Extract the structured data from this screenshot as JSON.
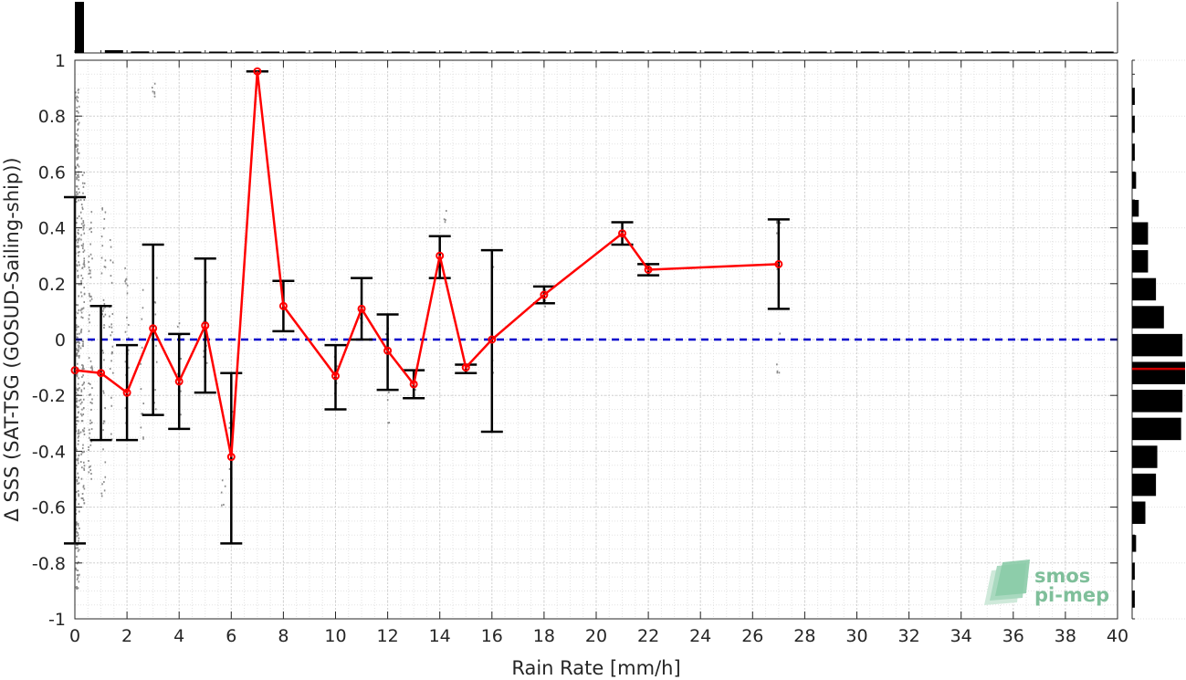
{
  "chart_data": {
    "type": "scatter",
    "title": "",
    "xlabel": "Rain Rate [mm/h]",
    "ylabel": "Δ SSS (SAT-TSG (GOSUD-Sailing-ship))",
    "xlim": [
      0,
      40
    ],
    "ylim": [
      -1,
      1
    ],
    "x_ticks": [
      0,
      2,
      4,
      6,
      8,
      10,
      12,
      14,
      16,
      18,
      20,
      22,
      24,
      26,
      28,
      30,
      32,
      34,
      36,
      38,
      40
    ],
    "y_ticks": [
      -1,
      -0.8,
      -0.6,
      -0.4,
      -0.2,
      0,
      0.2,
      0.4,
      0.6,
      0.8,
      1
    ],
    "y_tick_labels": [
      "-1",
      "-0.8",
      "-0.6",
      "-0.4",
      "-0.2",
      "0",
      "0.2",
      "0.4",
      "0.6",
      "0.8",
      "1"
    ],
    "grid": true,
    "reference_line": {
      "y": 0,
      "color": "#0000cc",
      "style": "dashed"
    },
    "series": [
      {
        "type": "line-with-errorbars",
        "color": "#ff0000",
        "errorbar_color": "#000000",
        "points": [
          {
            "x": 0,
            "y": -0.11,
            "low": -0.73,
            "high": 0.51
          },
          {
            "x": 1,
            "y": -0.12,
            "low": -0.36,
            "high": 0.12
          },
          {
            "x": 2,
            "y": -0.19,
            "low": -0.36,
            "high": -0.02
          },
          {
            "x": 3,
            "y": 0.04,
            "low": -0.27,
            "high": 0.34
          },
          {
            "x": 4,
            "y": -0.15,
            "low": -0.32,
            "high": 0.02
          },
          {
            "x": 5,
            "y": 0.05,
            "low": -0.19,
            "high": 0.29
          },
          {
            "x": 6,
            "y": -0.42,
            "low": -0.73,
            "high": -0.12
          },
          {
            "x": 7,
            "y": 0.96,
            "low": 0.96,
            "high": 0.96
          },
          {
            "x": 8,
            "y": 0.12,
            "low": 0.03,
            "high": 0.21
          },
          {
            "x": 10,
            "y": -0.13,
            "low": -0.25,
            "high": -0.02
          },
          {
            "x": 11,
            "y": 0.11,
            "low": 0.0,
            "high": 0.22
          },
          {
            "x": 12,
            "y": -0.04,
            "low": -0.18,
            "high": 0.09
          },
          {
            "x": 13,
            "y": -0.16,
            "low": -0.21,
            "high": -0.11
          },
          {
            "x": 14,
            "y": 0.3,
            "low": 0.22,
            "high": 0.37
          },
          {
            "x": 15,
            "y": -0.1,
            "low": -0.12,
            "high": -0.09
          },
          {
            "x": 16,
            "y": 0.0,
            "low": -0.33,
            "high": 0.32
          },
          {
            "x": 18,
            "y": 0.16,
            "low": 0.13,
            "high": 0.19
          },
          {
            "x": 21,
            "y": 0.38,
            "low": 0.34,
            "high": 0.42
          },
          {
            "x": 22,
            "y": 0.25,
            "low": 0.23,
            "high": 0.27
          },
          {
            "x": 27,
            "y": 0.27,
            "low": 0.11,
            "high": 0.43
          }
        ]
      }
    ],
    "scatter_points": {
      "color": "#8c8c8c",
      "description_note": "",
      "clusters": [
        {
          "x": 0.1,
          "y_min": -0.9,
          "y_max": 0.9,
          "count": 260
        },
        {
          "x": 0.3,
          "y_min": -0.6,
          "y_max": 0.6,
          "count": 120
        },
        {
          "x": 0.6,
          "y_min": -0.5,
          "y_max": 0.5,
          "count": 60
        },
        {
          "x": 1.1,
          "y_min": -0.6,
          "y_max": 0.5,
          "count": 40
        },
        {
          "x": 1.4,
          "y_min": -0.4,
          "y_max": 0.4,
          "count": 25
        },
        {
          "x": 2.0,
          "y_min": -0.3,
          "y_max": 0.3,
          "count": 20
        },
        {
          "x": 2.6,
          "y_min": -0.4,
          "y_max": 0.2,
          "count": 12
        },
        {
          "x": 3.0,
          "y_min": 0.85,
          "y_max": 0.92,
          "count": 6
        },
        {
          "x": 3.1,
          "y_min": -0.3,
          "y_max": 0.3,
          "count": 10
        },
        {
          "x": 4.0,
          "y_min": -0.3,
          "y_max": 0.1,
          "count": 10
        },
        {
          "x": 5.0,
          "y_min": -0.2,
          "y_max": 0.3,
          "count": 8
        },
        {
          "x": 5.7,
          "y_min": -0.6,
          "y_max": -0.5,
          "count": 5
        },
        {
          "x": 6.0,
          "y_min": -0.5,
          "y_max": -0.2,
          "count": 6
        },
        {
          "x": 10.0,
          "y_min": -0.2,
          "y_max": -0.05,
          "count": 6
        },
        {
          "x": 11.0,
          "y_min": 0.05,
          "y_max": 0.15,
          "count": 5
        },
        {
          "x": 12.0,
          "y_min": -0.3,
          "y_max": 0.05,
          "count": 6
        },
        {
          "x": 13.0,
          "y_min": -0.2,
          "y_max": -0.12,
          "count": 4
        },
        {
          "x": 14.2,
          "y_min": 0.3,
          "y_max": 0.47,
          "count": 5
        },
        {
          "x": 16.0,
          "y_min": -0.2,
          "y_max": 0.3,
          "count": 5
        },
        {
          "x": 18.0,
          "y_min": 0.1,
          "y_max": 0.2,
          "count": 4
        },
        {
          "x": 27.0,
          "y_min": -0.13,
          "y_max": 0.57,
          "count": 10
        }
      ]
    },
    "histogram_top": {
      "color": "#000000",
      "bin_width": 1,
      "counts": [
        1000,
        40,
        20,
        15,
        10,
        10,
        8,
        5,
        8,
        3,
        10,
        10,
        8,
        6,
        10,
        8,
        5,
        3,
        6,
        2,
        2,
        4,
        4,
        1,
        1,
        1,
        1,
        3,
        1,
        1,
        1,
        1,
        1,
        1,
        1,
        1,
        1,
        1,
        1,
        1
      ]
    },
    "histogram_right": {
      "color": "#000000",
      "mean_line": {
        "y": -0.105,
        "color": "#cc0000"
      },
      "bins": [
        {
          "y_low": -0.96,
          "y_high": -0.9,
          "count": 2
        },
        {
          "y_low": -0.86,
          "y_high": -0.8,
          "count": 2
        },
        {
          "y_low": -0.76,
          "y_high": -0.7,
          "count": 3
        },
        {
          "y_low": -0.66,
          "y_high": -0.58,
          "count": 10
        },
        {
          "y_low": -0.56,
          "y_high": -0.48,
          "count": 18
        },
        {
          "y_low": -0.46,
          "y_high": -0.38,
          "count": 19
        },
        {
          "y_low": -0.36,
          "y_high": -0.28,
          "count": 37
        },
        {
          "y_low": -0.26,
          "y_high": -0.18,
          "count": 38
        },
        {
          "y_low": -0.16,
          "y_high": -0.08,
          "count": 40
        },
        {
          "y_low": -0.06,
          "y_high": 0.02,
          "count": 38
        },
        {
          "y_low": 0.04,
          "y_high": 0.12,
          "count": 24
        },
        {
          "y_low": 0.14,
          "y_high": 0.22,
          "count": 18
        },
        {
          "y_low": 0.24,
          "y_high": 0.32,
          "count": 12
        },
        {
          "y_low": 0.34,
          "y_high": 0.42,
          "count": 12
        },
        {
          "y_low": 0.44,
          "y_high": 0.5,
          "count": 5
        },
        {
          "y_low": 0.54,
          "y_high": 0.6,
          "count": 3
        },
        {
          "y_low": 0.64,
          "y_high": 0.7,
          "count": 2
        },
        {
          "y_low": 0.74,
          "y_high": 0.8,
          "count": 2
        },
        {
          "y_low": 0.84,
          "y_high": 0.9,
          "count": 2
        }
      ]
    }
  },
  "logo": {
    "line1": "smos",
    "line2": "pi-mep"
  }
}
